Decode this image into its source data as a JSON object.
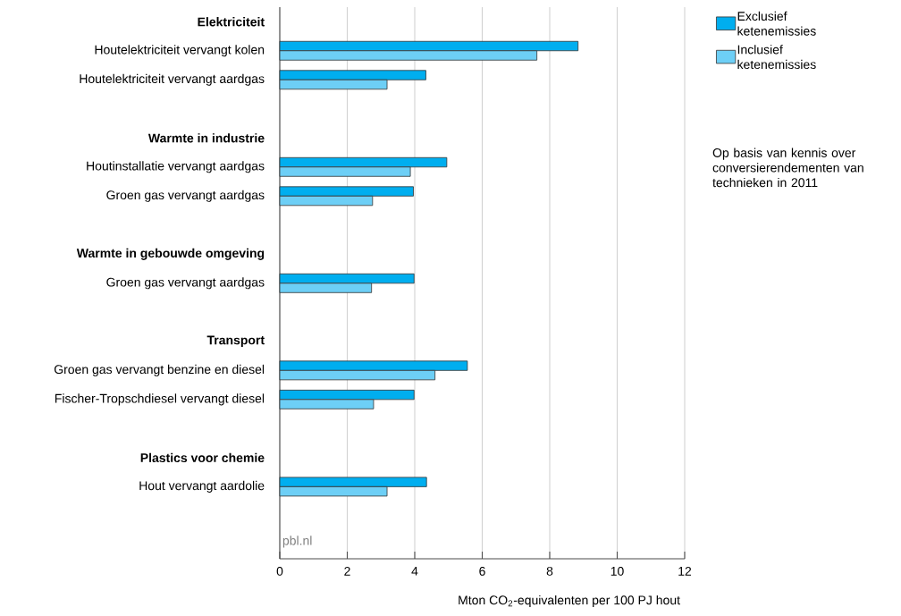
{
  "chart_data": {
    "type": "bar",
    "orientation": "horizontal",
    "categories": [
      "Elektriciteit",
      "Houtelektriciteit vervangt kolen",
      "Houtelektriciteit vervangt aardgas",
      null,
      "Warmte in industrie",
      "Houtinstallatie vervangt aardgas",
      "Groen gas vervangt aardgas",
      null,
      "Warmte in gebouwde omgeving",
      "Groen gas vervangt aardgas",
      null,
      "Transport",
      "Groen gas vervangt benzine en diesel",
      "Fischer-Tropschdiesel vervangt diesel",
      null,
      "Plastics voor chemie",
      "Hout vervangt aardolie"
    ],
    "series": [
      {
        "name": "Exclusief ketenemissies",
        "color": "#00aeef",
        "values": [
          null,
          8.84,
          4.33,
          null,
          null,
          4.95,
          3.96,
          null,
          null,
          3.98,
          null,
          null,
          5.56,
          3.98,
          null,
          null,
          4.35
        ]
      },
      {
        "name": "Inclusief ketenemissies",
        "color": "#6dcff6",
        "values": [
          null,
          7.62,
          3.18,
          null,
          null,
          3.87,
          2.75,
          null,
          null,
          2.72,
          null,
          null,
          4.6,
          2.78,
          null,
          null,
          3.18
        ]
      }
    ],
    "xlim": [
      0,
      12
    ],
    "xticks": [
      0,
      2,
      4,
      6,
      8,
      10,
      12
    ],
    "xlabel": "Mton CO$_{2}$-equivalenten per 100 PJ hout",
    "grid": "x",
    "legend": "top right",
    "annotations": [
      "Op basis van kennis over conversierendementen van technieken in 2011",
      "pbl.nl"
    ]
  }
}
